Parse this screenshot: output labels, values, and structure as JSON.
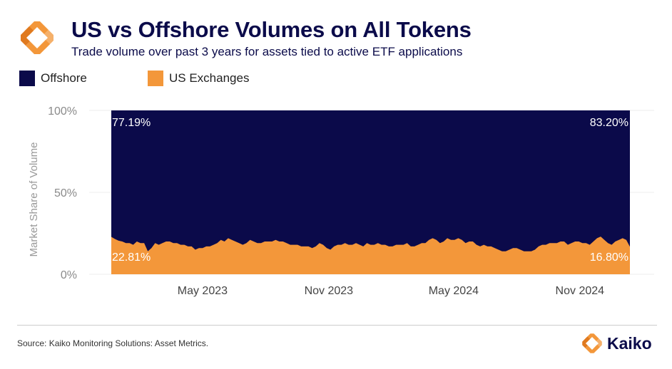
{
  "header": {
    "title": "US vs Offshore Volumes on All Tokens",
    "subtitle": "Trade volume over past 3 years for assets tied to active ETF applications",
    "logo_icon": "kaiko-logo-icon"
  },
  "colors": {
    "offshore": "#0b0a4a",
    "us": "#f3973a",
    "brand_navy": "#0b0b4a",
    "brand_orange": "#f3973a"
  },
  "footer": {
    "source": "Source: Kaiko Monitoring Solutions: Asset Metrics.",
    "brand_name": "Kaiko"
  },
  "chart_data": {
    "type": "area",
    "stacked": true,
    "percent": true,
    "x_start": "2022-12-19",
    "x_end": "2025-01-13",
    "x_step": "week",
    "ylabel": "Market Share of Volume",
    "ylim": [
      0,
      100
    ],
    "yticks": [
      0,
      50,
      100
    ],
    "ytick_labels": [
      "0%",
      "50%",
      "100%"
    ],
    "xticks": [
      "2023-05-01",
      "2023-11-01",
      "2024-05-01",
      "2024-11-01"
    ],
    "xtick_labels": [
      "May 2023",
      "Nov 2023",
      "May 2024",
      "Nov 2024"
    ],
    "grid": true,
    "legend_position": "top-left",
    "series": [
      {
        "name": "Offshore",
        "values": [
          77.19,
          78.5,
          79.5,
          80,
          81,
          81,
          82,
          80,
          81,
          81,
          86,
          84,
          81,
          82,
          81,
          80,
          80,
          81,
          81,
          82,
          82,
          83,
          83,
          85,
          84,
          84,
          83,
          83,
          82,
          81,
          79,
          80,
          78,
          79,
          80,
          81,
          82,
          81,
          79,
          80,
          81,
          81,
          80,
          80,
          80,
          79,
          80,
          80,
          81,
          82,
          82,
          82,
          83,
          83,
          83,
          84,
          83,
          81,
          82,
          84,
          85,
          83,
          82,
          82,
          81,
          82,
          82,
          81,
          82,
          83,
          81,
          82,
          82,
          81,
          82,
          82,
          83,
          83,
          82,
          82,
          82,
          81,
          83,
          83,
          82,
          81,
          81,
          79,
          78,
          79,
          81,
          80,
          78,
          79,
          79,
          78,
          79,
          81,
          80,
          80,
          82,
          83,
          82,
          83,
          83,
          84,
          85,
          86,
          86,
          85,
          84,
          84,
          85,
          86,
          86,
          86,
          85,
          83,
          82,
          82,
          81,
          81,
          81,
          80,
          80,
          82,
          81,
          80,
          80,
          81,
          81,
          82,
          80,
          78,
          77,
          79,
          81,
          82,
          80,
          79,
          78,
          79,
          83.2
        ],
        "end_labels": [
          "77.19%",
          "83.20%"
        ]
      },
      {
        "name": "US Exchanges",
        "values": [
          22.81,
          21.5,
          20.5,
          20,
          19,
          19,
          18,
          20,
          19,
          19,
          14,
          16,
          19,
          18,
          19,
          20,
          20,
          19,
          19,
          18,
          18,
          17,
          17,
          15,
          16,
          16,
          17,
          17,
          18,
          19,
          21,
          20,
          22,
          21,
          20,
          19,
          18,
          19,
          21,
          20,
          19,
          19,
          20,
          20,
          20,
          21,
          20,
          20,
          19,
          18,
          18,
          18,
          17,
          17,
          17,
          16,
          17,
          19,
          18,
          16,
          15,
          17,
          18,
          18,
          19,
          18,
          18,
          19,
          18,
          17,
          19,
          18,
          18,
          19,
          18,
          18,
          17,
          17,
          18,
          18,
          18,
          19,
          17,
          17,
          18,
          19,
          19,
          21,
          22,
          21,
          19,
          20,
          22,
          21,
          21,
          22,
          21,
          19,
          20,
          20,
          18,
          17,
          18,
          17,
          17,
          16,
          15,
          14,
          14,
          15,
          16,
          16,
          15,
          14,
          14,
          14,
          15,
          17,
          18,
          18,
          19,
          19,
          19,
          20,
          20,
          18,
          19,
          20,
          20,
          19,
          19,
          18,
          20,
          22,
          23,
          21,
          19,
          18,
          20,
          21,
          22,
          21,
          16.8
        ],
        "end_labels": [
          "22.81%",
          "16.80%"
        ]
      }
    ]
  }
}
